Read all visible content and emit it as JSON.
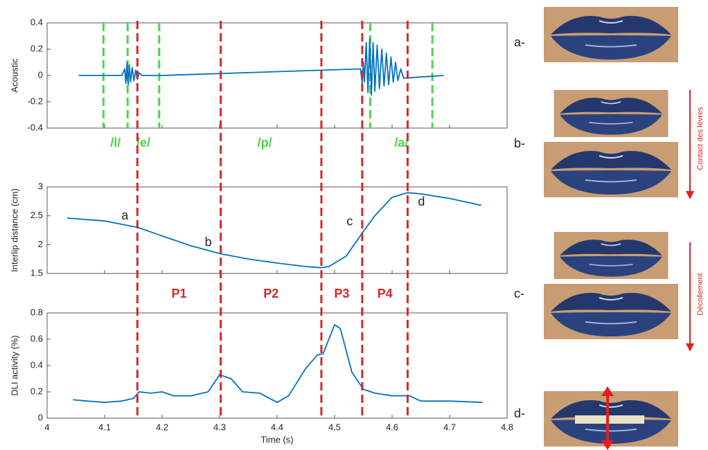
{
  "chart_data": [
    {
      "type": "line",
      "ylabel": "Acoustic",
      "xlim": [
        4,
        4.8
      ],
      "xticks": [
        4,
        4.1,
        4.2,
        4.3,
        4.4,
        4.5,
        4.6,
        4.7,
        4.8
      ],
      "ylim": [
        -0.4,
        0.4
      ],
      "yticks": [
        -0.4,
        -0.2,
        0,
        0.2,
        0.4
      ],
      "series": [
        {
          "color": "#0072bd",
          "x": [
            4.055,
            4.13,
            4.135,
            4.137,
            4.139,
            4.141,
            4.143,
            4.145,
            4.148,
            4.151,
            4.154,
            4.157,
            4.16,
            4.165,
            4.2,
            4.545,
            4.548,
            4.55,
            4.552,
            4.555,
            4.558,
            4.561,
            4.564,
            4.567,
            4.57,
            4.574,
            4.578,
            4.582,
            4.586,
            4.59,
            4.594,
            4.598,
            4.602,
            4.606,
            4.61,
            4.615,
            4.62,
            4.69
          ],
          "values": [
            0,
            0,
            0.05,
            -0.06,
            0.1,
            -0.07,
            0.08,
            -0.05,
            0.06,
            -0.04,
            0.04,
            -0.03,
            0.02,
            0,
            0,
            0.05,
            -0.06,
            0.1,
            -0.05,
            0.25,
            -0.13,
            0.28,
            -0.15,
            0.25,
            -0.12,
            0.23,
            -0.1,
            0.2,
            -0.08,
            0.17,
            -0.07,
            0.14,
            -0.05,
            0.1,
            -0.04,
            0.05,
            -0.02,
            0
          ]
        }
      ],
      "segments": {
        "color": "#4cd34c",
        "boundaries": [
          4.098,
          4.14,
          4.195,
          4.562,
          4.67
        ],
        "labels": [
          "/l/",
          "/e/",
          "/p/",
          "/a/"
        ]
      }
    },
    {
      "type": "line",
      "ylabel": "Interlip distance (cm)",
      "xlim": [
        4,
        4.8
      ],
      "xticks": [
        4,
        4.1,
        4.2,
        4.3,
        4.4,
        4.5,
        4.6,
        4.7,
        4.8
      ],
      "ylim": [
        1.5,
        3
      ],
      "yticks": [
        1.5,
        2,
        2.5,
        3
      ],
      "series": [
        {
          "color": "#0072bd",
          "x": [
            4.035,
            4.1,
            4.157,
            4.2,
            4.25,
            4.302,
            4.35,
            4.4,
            4.45,
            4.477,
            4.49,
            4.52,
            4.548,
            4.57,
            4.6,
            4.627,
            4.65,
            4.7,
            4.755
          ],
          "values": [
            2.46,
            2.41,
            2.3,
            2.15,
            1.98,
            1.84,
            1.75,
            1.68,
            1.62,
            1.6,
            1.62,
            1.8,
            2.2,
            2.5,
            2.82,
            2.9,
            2.88,
            2.8,
            2.68
          ]
        }
      ],
      "point_labels": [
        {
          "label": "a",
          "x": 4.157,
          "y": 2.3
        },
        {
          "label": "b",
          "x": 4.302,
          "y": 1.84
        },
        {
          "label": "c",
          "x": 4.548,
          "y": 2.2
        },
        {
          "label": "d",
          "x": 4.627,
          "y": 2.9
        }
      ]
    },
    {
      "type": "line",
      "ylabel": "DLI activity (%)",
      "xlabel": "Time (s)",
      "xlim": [
        4,
        4.8
      ],
      "xticks": [
        4,
        4.1,
        4.2,
        4.3,
        4.4,
        4.5,
        4.6,
        4.7,
        4.8
      ],
      "ylim": [
        0,
        0.8
      ],
      "yticks": [
        0,
        0.2,
        0.4,
        0.6,
        0.8
      ],
      "series": [
        {
          "color": "#0072bd",
          "x": [
            4.045,
            4.07,
            4.1,
            4.13,
            4.15,
            4.16,
            4.18,
            4.2,
            4.22,
            4.25,
            4.28,
            4.3,
            4.32,
            4.34,
            4.37,
            4.4,
            4.42,
            4.45,
            4.47,
            4.48,
            4.5,
            4.51,
            4.53,
            4.55,
            4.57,
            4.6,
            4.63,
            4.65,
            4.7,
            4.757
          ],
          "values": [
            0.14,
            0.13,
            0.12,
            0.13,
            0.15,
            0.2,
            0.19,
            0.2,
            0.17,
            0.17,
            0.2,
            0.33,
            0.3,
            0.2,
            0.19,
            0.12,
            0.17,
            0.38,
            0.48,
            0.49,
            0.71,
            0.68,
            0.35,
            0.22,
            0.19,
            0.17,
            0.17,
            0.13,
            0.13,
            0.12
          ]
        }
      ]
    }
  ],
  "phases": {
    "color": "#d62728",
    "boundaries": [
      4.157,
      4.302,
      4.477,
      4.548,
      4.627
    ],
    "labels": [
      "P1",
      "P2",
      "P3",
      "P4"
    ]
  },
  "photos": {
    "labels": [
      "a-",
      "b-",
      "c-",
      "d-"
    ],
    "arrows": [
      "Contact des lèvres",
      "Décollement"
    ]
  }
}
